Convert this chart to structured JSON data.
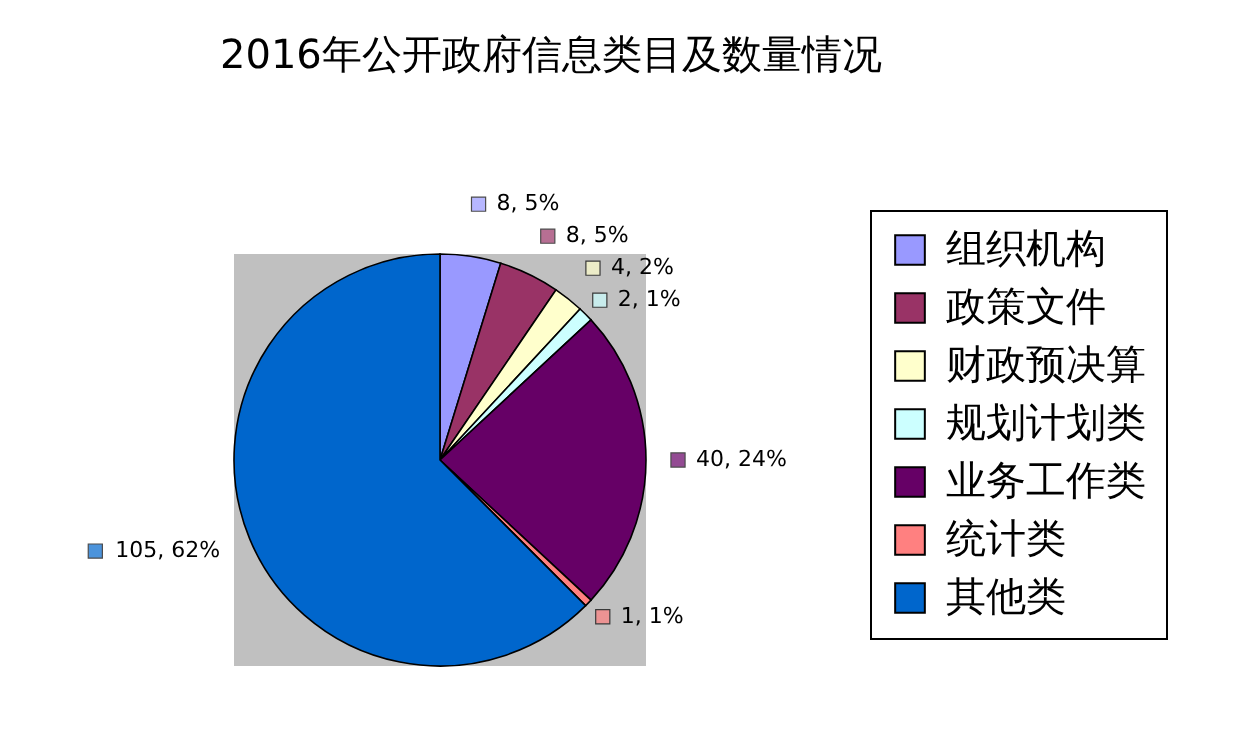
{
  "chart_data": {
    "type": "pie",
    "title": "2016年公开政府信息类目及数量情况",
    "categories": [
      "组织机构",
      "政策文件",
      "财政预决算",
      "规划计划类",
      "业务工作类",
      "统计类",
      "其他类"
    ],
    "values": [
      8,
      8,
      4,
      2,
      40,
      1,
      105
    ],
    "colors": [
      "#9999ff",
      "#993366",
      "#ffffcc",
      "#ccffff",
      "#660066",
      "#ff8080",
      "#0066cc"
    ],
    "value_labels": [
      "8, 5%",
      "8, 5%",
      "4, 2%",
      "2, 1%",
      "40, 24%",
      "1, 1%",
      "105, 62%"
    ],
    "legend": "right"
  }
}
